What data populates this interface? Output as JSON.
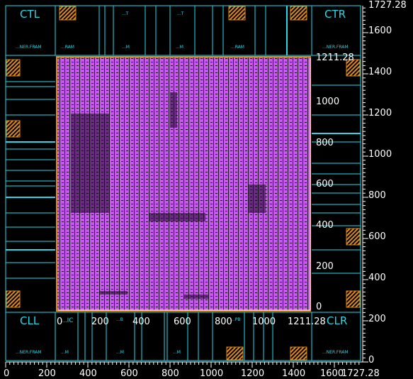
{
  "corners": {
    "tl": "CTL",
    "tr": "CTR",
    "bl": "CLL",
    "br": "CLR"
  },
  "top_cells": [
    "...NER.FRAM",
    "...RAM",
    "...M",
    "...M",
    "...RAM",
    "...NER.FRAM"
  ],
  "top_cells_upper": [
    "...T",
    "...T"
  ],
  "bottom_cells": [
    "...NER.FRAM",
    "...M",
    "...M",
    "...M",
    "...NER.FRAM"
  ],
  "bottom_cells_upper": [
    "...IC",
    "...B",
    "...PB"
  ],
  "core_axis": {
    "x_ticks": [
      "0",
      "200",
      "400",
      "600",
      "800",
      "1000",
      "1211.28"
    ],
    "y_ticks": [
      "0",
      "200",
      "400",
      "600",
      "800",
      "1000",
      "1211.28"
    ]
  },
  "outer_axis": {
    "x_ticks": [
      "0",
      "200",
      "400",
      "600",
      "800",
      "1000",
      "1200",
      "1400",
      "1600",
      "1727.28"
    ],
    "y_ticks": [
      "0",
      "200",
      "400",
      "600",
      "800",
      "1000",
      "1200",
      "1400",
      "1600",
      "1727.28"
    ]
  },
  "colors": {
    "background": "#000000",
    "cell_outline": "#28d8e8",
    "core_fill": "#c858f0",
    "io_pad": "#f0a020",
    "axis_text": "#ffffff"
  }
}
